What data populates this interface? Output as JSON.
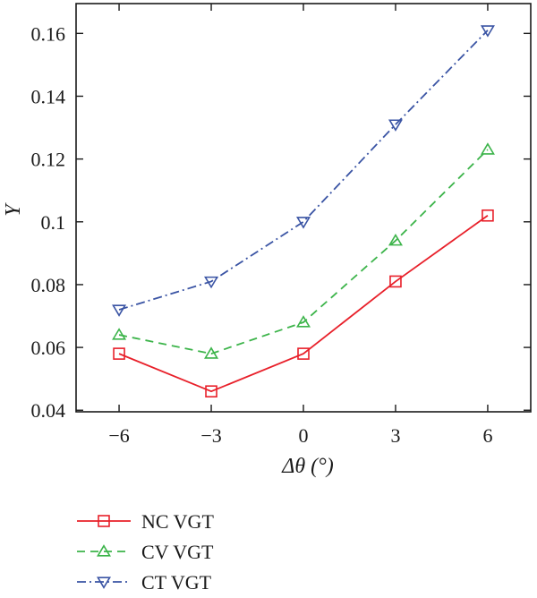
{
  "chart_data": {
    "type": "line",
    "xlabel": "Δθ (°)",
    "ylabel": "Y",
    "x": [
      -6,
      -3,
      0,
      3,
      6
    ],
    "x_tick_labels": [
      "−6",
      "−3",
      "0",
      "3",
      "6"
    ],
    "y_tick_labels": [
      "0.04",
      "0.06",
      "0.08",
      "0.1",
      "0.12",
      "0.14",
      "0.16"
    ],
    "y_ticks": [
      0.04,
      0.06,
      0.08,
      0.1,
      0.12,
      0.14,
      0.16
    ],
    "xlim": [
      -7.4,
      7.4
    ],
    "ylim": [
      0.0395,
      0.1695
    ],
    "grid": false,
    "legend_position": "bottom-left, below plot",
    "series": [
      {
        "name": "NC VGT",
        "color": "#e8202a",
        "line": "solid",
        "marker": "square",
        "values": [
          0.058,
          0.046,
          0.058,
          0.081,
          0.102
        ]
      },
      {
        "name": "CV VGT",
        "color": "#3cb44a",
        "line": "dashed",
        "marker": "triangle-up",
        "values": [
          0.064,
          0.058,
          0.068,
          0.094,
          0.123
        ]
      },
      {
        "name": "CT VGT",
        "color": "#3a54a4",
        "line": "dashdot",
        "marker": "triangle-down",
        "values": [
          0.072,
          0.081,
          0.1,
          0.131,
          0.161
        ]
      }
    ]
  }
}
